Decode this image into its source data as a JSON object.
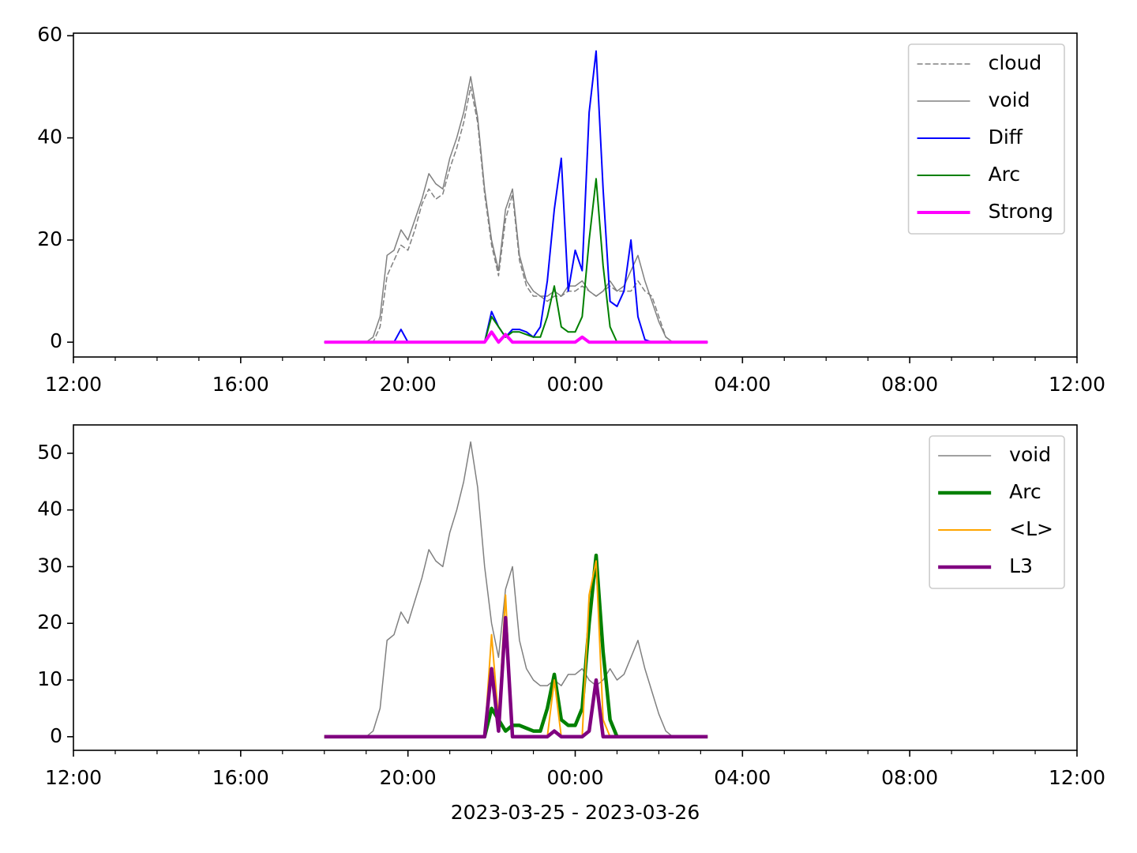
{
  "chart_data": [
    {
      "type": "line",
      "x": [
        "2023-03-25T18:00",
        "2023-03-25T18:10",
        "2023-03-25T18:20",
        "2023-03-25T18:30",
        "2023-03-25T18:40",
        "2023-03-25T18:50",
        "2023-03-25T19:00",
        "2023-03-25T19:10",
        "2023-03-25T19:20",
        "2023-03-25T19:30",
        "2023-03-25T19:40",
        "2023-03-25T19:50",
        "2023-03-25T20:00",
        "2023-03-25T20:10",
        "2023-03-25T20:20",
        "2023-03-25T20:30",
        "2023-03-25T20:40",
        "2023-03-25T20:50",
        "2023-03-25T21:00",
        "2023-03-25T21:10",
        "2023-03-25T21:20",
        "2023-03-25T21:30",
        "2023-03-25T21:40",
        "2023-03-25T21:50",
        "2023-03-25T22:00",
        "2023-03-25T22:10",
        "2023-03-25T22:20",
        "2023-03-25T22:30",
        "2023-03-25T22:40",
        "2023-03-25T22:50",
        "2023-03-25T23:00",
        "2023-03-25T23:10",
        "2023-03-25T23:20",
        "2023-03-25T23:30",
        "2023-03-25T23:40",
        "2023-03-25T23:50",
        "2023-03-26T00:00",
        "2023-03-26T00:10",
        "2023-03-26T00:20",
        "2023-03-26T00:30",
        "2023-03-26T00:40",
        "2023-03-26T00:50",
        "2023-03-26T01:00",
        "2023-03-26T01:10",
        "2023-03-26T01:20",
        "2023-03-26T01:30",
        "2023-03-26T01:40",
        "2023-03-26T01:50",
        "2023-03-26T02:00",
        "2023-03-26T02:10",
        "2023-03-26T02:20",
        "2023-03-26T02:30",
        "2023-03-26T02:40",
        "2023-03-26T02:50",
        "2023-03-26T03:00",
        "2023-03-26T03:10"
      ],
      "series": [
        {
          "name": "cloud",
          "color": "#808080",
          "linewidth": 1.5,
          "dashed": true,
          "values": [
            0,
            0,
            0,
            0,
            0,
            0,
            0,
            0,
            3,
            13,
            16,
            19,
            18,
            22,
            27,
            30,
            28,
            29,
            34,
            38,
            43,
            50,
            43,
            29,
            19,
            13,
            24,
            29,
            16,
            11,
            9,
            9,
            8,
            9,
            9,
            10,
            10,
            11,
            10,
            9,
            10,
            11,
            10,
            10,
            10,
            12,
            10,
            9,
            5,
            1,
            0,
            0,
            0,
            0,
            0,
            0
          ]
        },
        {
          "name": "void",
          "color": "#808080",
          "linewidth": 1.5,
          "dashed": false,
          "values": [
            0,
            0,
            0,
            0,
            0,
            0,
            0,
            1,
            5,
            17,
            18,
            22,
            20,
            24,
            28,
            33,
            31,
            30,
            36,
            40,
            45,
            52,
            44,
            30,
            20,
            14,
            26,
            30,
            17,
            12,
            10,
            9,
            9,
            10,
            9,
            11,
            11,
            12,
            10,
            9,
            10,
            12,
            10,
            11,
            14,
            17,
            12,
            8,
            4,
            1,
            0,
            0,
            0,
            0,
            0,
            0
          ]
        },
        {
          "name": "Diff",
          "color": "#0000ff",
          "linewidth": 2,
          "dashed": false,
          "values": [
            0,
            0,
            0,
            0,
            0,
            0,
            0,
            0,
            0,
            0,
            0,
            2.5,
            0,
            0,
            0,
            0,
            0,
            0,
            0,
            0,
            0,
            0,
            0,
            0,
            6,
            3,
            1,
            2.5,
            2.5,
            2,
            1,
            3,
            12,
            26,
            36,
            10,
            18,
            14,
            45,
            57,
            30,
            8,
            7,
            10,
            20,
            5,
            0.5,
            0,
            0,
            0,
            0,
            0,
            0,
            0,
            0,
            0
          ]
        },
        {
          "name": "Arc",
          "color": "#008000",
          "linewidth": 2,
          "dashed": false,
          "values": [
            0,
            0,
            0,
            0,
            0,
            0,
            0,
            0,
            0,
            0,
            0,
            0,
            0,
            0,
            0,
            0,
            0,
            0,
            0,
            0,
            0,
            0,
            0,
            0,
            5,
            3,
            1,
            2,
            2,
            1.5,
            1,
            1,
            5,
            11,
            3,
            2,
            2,
            5,
            20,
            32,
            15,
            3,
            0,
            0,
            0,
            0,
            0,
            0,
            0,
            0,
            0,
            0,
            0,
            0,
            0,
            0
          ]
        },
        {
          "name": "Strong",
          "color": "#ff00ff",
          "linewidth": 4,
          "dashed": false,
          "values": [
            0,
            0,
            0,
            0,
            0,
            0,
            0,
            0,
            0,
            0,
            0,
            0,
            0,
            0,
            0,
            0,
            0,
            0,
            0,
            0,
            0,
            0,
            0,
            0,
            2,
            0,
            1.5,
            0,
            0,
            0,
            0,
            0,
            0,
            0,
            0,
            0,
            0,
            1,
            0,
            0,
            0,
            0,
            0,
            0,
            0,
            0,
            0,
            0,
            0,
            0,
            0,
            0,
            0,
            0,
            0,
            0
          ]
        }
      ],
      "xlim": [
        "2023-03-25T12:00",
        "2023-03-26T12:00"
      ],
      "xticks": [
        {
          "value": "2023-03-25T12:00",
          "label": "12:00"
        },
        {
          "value": "2023-03-25T16:00",
          "label": "16:00"
        },
        {
          "value": "2023-03-25T20:00",
          "label": "20:00"
        },
        {
          "value": "2023-03-26T00:00",
          "label": "00:00"
        },
        {
          "value": "2023-03-26T04:00",
          "label": "04:00"
        },
        {
          "value": "2023-03-26T08:00",
          "label": "08:00"
        },
        {
          "value": "2023-03-26T12:00",
          "label": "12:00"
        }
      ],
      "ylim": [
        -2.9,
        60.5
      ],
      "yticks": [
        0,
        20,
        40,
        60
      ],
      "legend": "upper right"
    },
    {
      "type": "line",
      "x": [
        "2023-03-25T18:00",
        "2023-03-25T18:10",
        "2023-03-25T18:20",
        "2023-03-25T18:30",
        "2023-03-25T18:40",
        "2023-03-25T18:50",
        "2023-03-25T19:00",
        "2023-03-25T19:10",
        "2023-03-25T19:20",
        "2023-03-25T19:30",
        "2023-03-25T19:40",
        "2023-03-25T19:50",
        "2023-03-25T20:00",
        "2023-03-25T20:10",
        "2023-03-25T20:20",
        "2023-03-25T20:30",
        "2023-03-25T20:40",
        "2023-03-25T20:50",
        "2023-03-25T21:00",
        "2023-03-25T21:10",
        "2023-03-25T21:20",
        "2023-03-25T21:30",
        "2023-03-25T21:40",
        "2023-03-25T21:50",
        "2023-03-25T22:00",
        "2023-03-25T22:10",
        "2023-03-25T22:20",
        "2023-03-25T22:30",
        "2023-03-25T22:40",
        "2023-03-25T22:50",
        "2023-03-25T23:00",
        "2023-03-25T23:10",
        "2023-03-25T23:20",
        "2023-03-25T23:30",
        "2023-03-25T23:40",
        "2023-03-25T23:50",
        "2023-03-26T00:00",
        "2023-03-26T00:10",
        "2023-03-26T00:20",
        "2023-03-26T00:30",
        "2023-03-26T00:40",
        "2023-03-26T00:50",
        "2023-03-26T01:00",
        "2023-03-26T01:10",
        "2023-03-26T01:20",
        "2023-03-26T01:30",
        "2023-03-26T01:40",
        "2023-03-26T01:50",
        "2023-03-26T02:00",
        "2023-03-26T02:10",
        "2023-03-26T02:20",
        "2023-03-26T02:30",
        "2023-03-26T02:40",
        "2023-03-26T02:50",
        "2023-03-26T03:00",
        "2023-03-26T03:10"
      ],
      "series": [
        {
          "name": "void",
          "color": "#808080",
          "linewidth": 1.5,
          "dashed": false,
          "values": [
            0,
            0,
            0,
            0,
            0,
            0,
            0,
            1,
            5,
            17,
            18,
            22,
            20,
            24,
            28,
            33,
            31,
            30,
            36,
            40,
            45,
            52,
            44,
            30,
            20,
            14,
            26,
            30,
            17,
            12,
            10,
            9,
            9,
            10,
            9,
            11,
            11,
            12,
            10,
            9,
            10,
            12,
            10,
            11,
            14,
            17,
            12,
            8,
            4,
            1,
            0,
            0,
            0,
            0,
            0,
            0
          ]
        },
        {
          "name": "Arc",
          "color": "#008000",
          "linewidth": 4.5,
          "dashed": false,
          "values": [
            0,
            0,
            0,
            0,
            0,
            0,
            0,
            0,
            0,
            0,
            0,
            0,
            0,
            0,
            0,
            0,
            0,
            0,
            0,
            0,
            0,
            0,
            0,
            0,
            5,
            3,
            1,
            2,
            2,
            1.5,
            1,
            1,
            5,
            11,
            3,
            2,
            2,
            5,
            20,
            32,
            15,
            3,
            0,
            0,
            0,
            0,
            0,
            0,
            0,
            0,
            0,
            0,
            0,
            0,
            0,
            0
          ]
        },
        {
          "name": "<L>",
          "color": "#ffa500",
          "linewidth": 2,
          "dashed": false,
          "values": [
            0,
            0,
            0,
            0,
            0,
            0,
            0,
            0,
            0,
            0,
            0,
            0,
            0,
            0,
            0,
            0,
            0,
            0,
            0,
            0,
            0,
            0,
            0,
            0,
            18,
            3,
            25,
            0,
            0,
            0,
            0,
            0,
            0,
            10,
            0,
            0,
            0,
            0,
            25,
            31,
            3,
            0,
            0,
            0,
            0,
            0,
            0,
            0,
            0,
            0,
            0,
            0,
            0,
            0,
            0,
            0
          ]
        },
        {
          "name": "L3",
          "color": "#800080",
          "linewidth": 4.5,
          "dashed": false,
          "values": [
            0,
            0,
            0,
            0,
            0,
            0,
            0,
            0,
            0,
            0,
            0,
            0,
            0,
            0,
            0,
            0,
            0,
            0,
            0,
            0,
            0,
            0,
            0,
            0,
            12,
            1,
            21,
            0,
            0,
            0,
            0,
            0,
            0,
            1,
            0,
            0,
            0,
            0,
            1,
            10,
            0,
            0,
            0,
            0,
            0,
            0,
            0,
            0,
            0,
            0,
            0,
            0,
            0,
            0,
            0,
            0
          ]
        }
      ],
      "xlim": [
        "2023-03-25T12:00",
        "2023-03-26T12:00"
      ],
      "xticks": [
        {
          "value": "2023-03-25T12:00",
          "label": "12:00"
        },
        {
          "value": "2023-03-25T16:00",
          "label": "16:00"
        },
        {
          "value": "2023-03-25T20:00",
          "label": "20:00"
        },
        {
          "value": "2023-03-26T00:00",
          "label": "00:00"
        },
        {
          "value": "2023-03-26T04:00",
          "label": "04:00"
        },
        {
          "value": "2023-03-26T08:00",
          "label": "08:00"
        },
        {
          "value": "2023-03-26T12:00",
          "label": "12:00"
        }
      ],
      "ylim": [
        -2.4,
        55.0
      ],
      "yticks": [
        0,
        10,
        20,
        30,
        40,
        50
      ],
      "xlabel": "2023-03-25 - 2023-03-26",
      "legend": "upper right"
    }
  ]
}
